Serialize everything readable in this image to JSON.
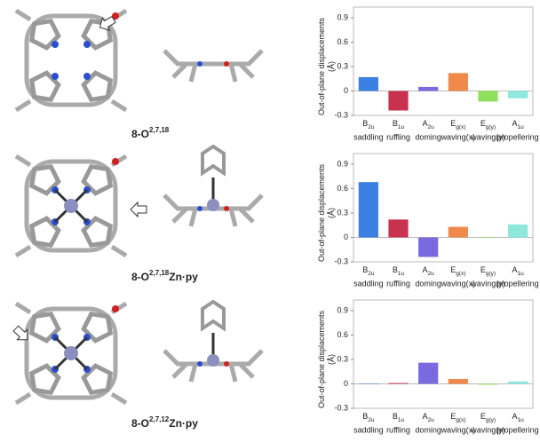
{
  "molecules": [
    {
      "name": "8-O",
      "superscript": "2,7,18"
    },
    {
      "name": "8-O",
      "superscript": "2,7,18",
      "suffix": "Zn·py"
    },
    {
      "name": "8-O",
      "superscript": "2,7,12",
      "suffix": "Zn·py"
    }
  ],
  "chart_data": [
    {
      "type": "bar",
      "ylabel": [
        "Out-of-plane displacements",
        "(Å)"
      ],
      "categories": [
        "saddling",
        "ruffling",
        "doming",
        "waving(x)",
        "waving(y)",
        "propellering"
      ],
      "symmetry": [
        {
          "base": "B",
          "sub": "2u"
        },
        {
          "base": "B",
          "sub": "1u"
        },
        {
          "base": "A",
          "sub": "2u"
        },
        {
          "base": "E",
          "sub": "g(x)"
        },
        {
          "base": "E",
          "sub": "g(y)"
        },
        {
          "base": "A",
          "sub": "1u"
        }
      ],
      "values": [
        0.17,
        -0.24,
        0.05,
        0.22,
        -0.13,
        -0.09
      ],
      "colors": [
        "#3b7fe0",
        "#c8324e",
        "#7a6ae0",
        "#f08a4b",
        "#8fe05a",
        "#8ee8dc"
      ],
      "ylim": [
        -0.3,
        0.9
      ],
      "yticks": [
        -0.3,
        0,
        0.3,
        0.6,
        0.9
      ]
    },
    {
      "type": "bar",
      "ylabel": [
        "Out-of-plane displacements",
        "(Å)"
      ],
      "categories": [
        "saddling",
        "ruffling",
        "doming",
        "waving(x)",
        "waving(y)",
        "propellering"
      ],
      "symmetry": [
        {
          "base": "B",
          "sub": "2u"
        },
        {
          "base": "B",
          "sub": "1u"
        },
        {
          "base": "A",
          "sub": "2u"
        },
        {
          "base": "E",
          "sub": "g(x)"
        },
        {
          "base": "E",
          "sub": "g(y)"
        },
        {
          "base": "A",
          "sub": "1u"
        }
      ],
      "values": [
        0.68,
        0.22,
        -0.24,
        0.13,
        0,
        0.16
      ],
      "colors": [
        "#3b7fe0",
        "#c8324e",
        "#7a6ae0",
        "#f08a4b",
        "#8fe05a",
        "#8ee8dc"
      ],
      "ylim": [
        -0.3,
        0.9
      ],
      "yticks": [
        -0.3,
        0,
        0.3,
        0.6,
        0.9
      ]
    },
    {
      "type": "bar",
      "ylabel": [
        "Out-of-plane displacements",
        "(Å)"
      ],
      "categories": [
        "saddling",
        "ruffling",
        "doming",
        "waving(x)",
        "waving(y)",
        "propellering"
      ],
      "symmetry": [
        {
          "base": "B",
          "sub": "2u"
        },
        {
          "base": "B",
          "sub": "1u"
        },
        {
          "base": "A",
          "sub": "2u"
        },
        {
          "base": "E",
          "sub": "g(x)"
        },
        {
          "base": "E",
          "sub": "g(y)"
        },
        {
          "base": "A",
          "sub": "1u"
        }
      ],
      "values": [
        0,
        0.01,
        0.26,
        0.06,
        -0.01,
        0.03
      ],
      "colors": [
        "#3b7fe0",
        "#c8324e",
        "#7a6ae0",
        "#f08a4b",
        "#8fe05a",
        "#8ee8dc"
      ],
      "ylim": [
        -0.3,
        0.9
      ],
      "yticks": [
        -0.3,
        0,
        0.3,
        0.6,
        0.9
      ]
    }
  ]
}
